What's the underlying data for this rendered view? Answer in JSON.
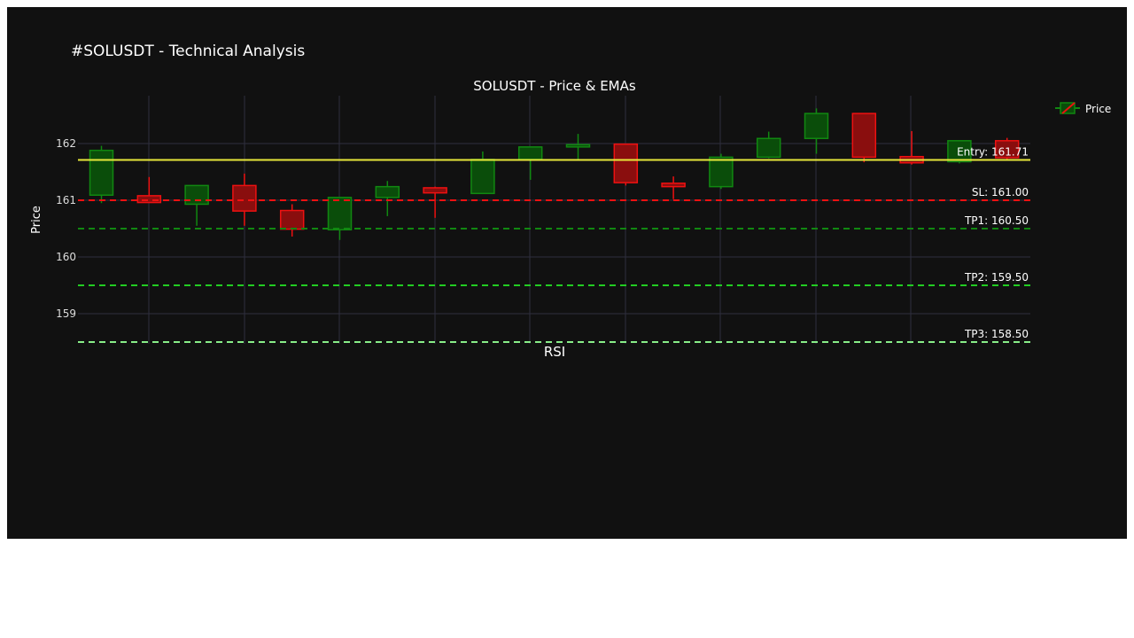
{
  "page": {
    "title": "#SOLUSDT - Technical Analysis"
  },
  "chart_data": {
    "type": "candlestick",
    "title": "SOLUSDT - Price & EMAs",
    "subplot_title": "RSI",
    "ylabel": "Price",
    "xlabel": "",
    "ylim": [
      158.5,
      162.85
    ],
    "yticks": [
      159,
      160,
      161,
      162
    ],
    "grid": true,
    "legend": {
      "placement": "top-right",
      "entries": [
        "Price"
      ]
    },
    "colors": {
      "background": "#111111",
      "grid": "#2e2e3e",
      "up": "#118811",
      "up_fill": "#0a4d0a",
      "down": "#ee1111",
      "down_fill": "#8a0e0e",
      "text": "#ffffff",
      "tick_text": "#dddddd"
    },
    "candles": [
      {
        "open": 161.09,
        "high": 161.96,
        "low": 160.95,
        "close": 161.88
      },
      {
        "open": 161.08,
        "high": 161.41,
        "low": 160.97,
        "close": 160.96
      },
      {
        "open": 160.93,
        "high": 161.26,
        "low": 160.55,
        "close": 161.26
      },
      {
        "open": 161.26,
        "high": 161.47,
        "low": 160.55,
        "close": 160.81
      },
      {
        "open": 160.82,
        "high": 160.93,
        "low": 160.36,
        "close": 160.49
      },
      {
        "open": 160.48,
        "high": 161.05,
        "low": 160.3,
        "close": 161.05
      },
      {
        "open": 161.05,
        "high": 161.34,
        "low": 160.72,
        "close": 161.24
      },
      {
        "open": 161.22,
        "high": 161.24,
        "low": 160.69,
        "close": 161.13
      },
      {
        "open": 161.12,
        "high": 161.86,
        "low": 161.12,
        "close": 161.72
      },
      {
        "open": 161.72,
        "high": 161.94,
        "low": 161.36,
        "close": 161.94
      },
      {
        "open": 161.94,
        "high": 162.17,
        "low": 161.71,
        "close": 161.98
      },
      {
        "open": 161.99,
        "high": 161.99,
        "low": 161.26,
        "close": 161.31
      },
      {
        "open": 161.3,
        "high": 161.42,
        "low": 161.02,
        "close": 161.24
      },
      {
        "open": 161.24,
        "high": 161.82,
        "low": 161.2,
        "close": 161.76
      },
      {
        "open": 161.76,
        "high": 162.21,
        "low": 161.74,
        "close": 162.09
      },
      {
        "open": 162.09,
        "high": 162.62,
        "low": 161.82,
        "close": 162.53
      },
      {
        "open": 162.53,
        "high": 162.53,
        "low": 161.67,
        "close": 161.76
      },
      {
        "open": 161.77,
        "high": 162.22,
        "low": 161.63,
        "close": 161.66
      },
      {
        "open": 161.68,
        "high": 162.05,
        "low": 161.65,
        "close": 162.05
      },
      {
        "open": 162.05,
        "high": 162.1,
        "low": 161.7,
        "close": 161.75
      }
    ],
    "levels": [
      {
        "name": "Entry",
        "value": 161.71,
        "label": "Entry: 161.71",
        "color": "#e8e83a",
        "dashed": false
      },
      {
        "name": "SL",
        "value": 161.0,
        "label": "SL: 161.00",
        "color": "#ee1111",
        "dashed": true
      },
      {
        "name": "TP1",
        "value": 160.5,
        "label": "TP1: 160.50",
        "color": "#118811",
        "dashed": true
      },
      {
        "name": "TP2",
        "value": 159.5,
        "label": "TP2: 159.50",
        "color": "#22cc22",
        "dashed": true
      },
      {
        "name": "TP3",
        "value": 158.5,
        "label": "TP3: 158.50",
        "color": "#88ee88",
        "dashed": true
      }
    ]
  }
}
